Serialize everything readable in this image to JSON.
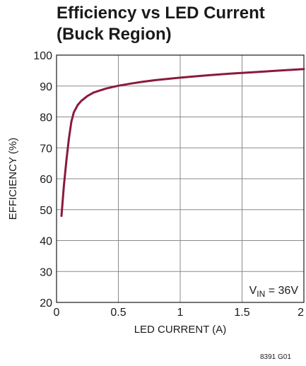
{
  "chart_data": {
    "type": "line",
    "title": [
      "Efficiency vs LED Current",
      "(Buck Region)"
    ],
    "xlabel": "LED CURRENT (A)",
    "ylabel": "EFFICIENCY (%)",
    "xlim": [
      0,
      2
    ],
    "ylim": [
      20,
      100
    ],
    "xticks": [
      0,
      0.5,
      1,
      1.5,
      2
    ],
    "xtick_labels": [
      "0",
      "0.5",
      "1",
      "1.5",
      "2"
    ],
    "yticks": [
      20,
      30,
      40,
      50,
      60,
      70,
      80,
      90,
      100
    ],
    "ytick_labels": [
      "20",
      "30",
      "40",
      "50",
      "60",
      "70",
      "80",
      "90",
      "100"
    ],
    "grid": true,
    "line_color": "#8b1a3a",
    "annotation": {
      "main": "V",
      "sub": "IN",
      "rest": " = 36V"
    },
    "figure_id": "8391 G01",
    "series": [
      {
        "x": [
          0.04,
          0.06,
          0.08,
          0.1,
          0.12,
          0.14,
          0.17,
          0.2,
          0.25,
          0.3,
          0.4,
          0.5,
          0.6,
          0.7,
          0.8,
          1.0,
          1.2,
          1.4,
          1.6,
          1.8,
          2.0
        ],
        "y": [
          48,
          58,
          66,
          73,
          78.5,
          81.5,
          83.8,
          85.2,
          86.8,
          87.9,
          89.2,
          90.1,
          90.8,
          91.4,
          91.9,
          92.7,
          93.4,
          94.0,
          94.5,
          95.0,
          95.5
        ]
      }
    ]
  }
}
